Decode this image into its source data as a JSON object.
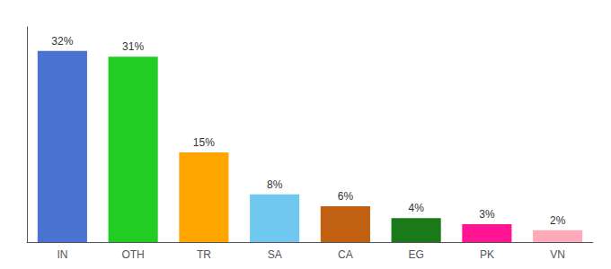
{
  "chart_data": {
    "type": "bar",
    "categories": [
      "IN",
      "OTH",
      "TR",
      "SA",
      "CA",
      "EG",
      "PK",
      "VN"
    ],
    "values": [
      32,
      31,
      15,
      8,
      6,
      4,
      3,
      2
    ],
    "value_labels": [
      "32%",
      "31%",
      "15%",
      "8%",
      "6%",
      "4%",
      "3%",
      "2%"
    ],
    "colors": [
      "#4a72d0",
      "#22cc22",
      "#ffa500",
      "#70c8f0",
      "#c06010",
      "#1a7a1a",
      "#ff1493",
      "#ffaabb"
    ],
    "ylim": [
      0,
      36
    ],
    "grid": false,
    "data_labels": true,
    "tick_labels": "x"
  }
}
